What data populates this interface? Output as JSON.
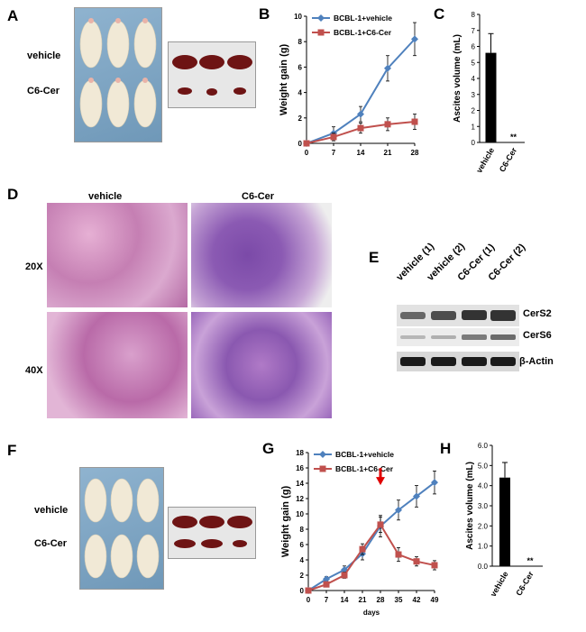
{
  "panels": {
    "A": {
      "letter": "A",
      "label_vehicle": "vehicle",
      "label_c6": "C6-Cer"
    },
    "B": {
      "letter": "B"
    },
    "C": {
      "letter": "C"
    },
    "D": {
      "letter": "D",
      "col_vehicle": "vehicle",
      "col_c6": "C6-Cer",
      "row_20x": "20X",
      "row_40x": "40X"
    },
    "E": {
      "letter": "E",
      "lanes": [
        "vehicle (1)",
        "vehicle (2)",
        "C6-Cer (1)",
        "C6-Cer (2)"
      ],
      "bands": [
        "CerS2",
        "CerS6",
        "β-Actin"
      ]
    },
    "F": {
      "letter": "F",
      "label_vehicle": "vehicle",
      "label_c6": "C6-Cer"
    },
    "G": {
      "letter": "G"
    },
    "H": {
      "letter": "H"
    }
  },
  "chart_data": [
    {
      "id": "B",
      "type": "line",
      "x": [
        0,
        7,
        14,
        21,
        28
      ],
      "series": [
        {
          "name": "BCBL-1+vehicle",
          "color": "#4f81bd",
          "marker": "diamond",
          "values": [
            0,
            0.8,
            2.3,
            5.9,
            8.2
          ],
          "errors": [
            0.1,
            0.5,
            0.6,
            1.0,
            1.3
          ]
        },
        {
          "name": "BCBL-1+C6-Cer",
          "color": "#c0504d",
          "marker": "square",
          "values": [
            0,
            0.5,
            1.2,
            1.5,
            1.7
          ],
          "errors": [
            0.1,
            0.3,
            0.4,
            0.5,
            0.6
          ]
        }
      ],
      "xticks": [
        "0",
        "7",
        "14",
        "21",
        "28"
      ],
      "yticks": [
        "0",
        "2",
        "4",
        "6",
        "8",
        "10"
      ],
      "ylabel": "Weight gain (g)",
      "xlabel": "",
      "ylim": [
        0,
        10
      ],
      "legend": "top-left"
    },
    {
      "id": "C",
      "type": "bar",
      "categories": [
        "vehicle",
        "C6-Cer"
      ],
      "values": [
        5.6,
        0.02
      ],
      "errors": [
        1.2,
        0
      ],
      "annotation": "**",
      "yticks": [
        "0",
        "1",
        "2",
        "3",
        "4",
        "5",
        "6",
        "7",
        "8"
      ],
      "ylabel": "Ascites volume (mL)",
      "ylim": [
        0,
        8
      ]
    },
    {
      "id": "G",
      "type": "line",
      "x": [
        0,
        7,
        14,
        21,
        28,
        35,
        42,
        49
      ],
      "series": [
        {
          "name": "BCBL-1+vehicle",
          "color": "#4f81bd",
          "marker": "diamond",
          "values": [
            0,
            1.5,
            2.7,
            4.8,
            8.4,
            10.5,
            12.3,
            14.1
          ],
          "errors": [
            0.2,
            0.3,
            0.5,
            0.8,
            1.4,
            1.3,
            1.4,
            1.5
          ]
        },
        {
          "name": "BCBL-1+C6-Cer",
          "color": "#c0504d",
          "marker": "square",
          "values": [
            0,
            0.8,
            2.0,
            5.4,
            8.6,
            4.7,
            3.8,
            3.3
          ],
          "errors": [
            0.1,
            0.3,
            0.4,
            0.7,
            1.0,
            0.9,
            0.6,
            0.6
          ]
        }
      ],
      "xticks": [
        "0",
        "7",
        "14",
        "21",
        "28",
        "35",
        "42",
        "49"
      ],
      "yticks": [
        "0",
        "2",
        "4",
        "6",
        "8",
        "10",
        "12",
        "14",
        "16",
        "18"
      ],
      "ylabel": "Weight gain (g)",
      "xlabel": "days",
      "ylim": [
        0,
        18
      ],
      "legend": "top-left",
      "arrow_at_x": 28
    },
    {
      "id": "H",
      "type": "bar",
      "categories": [
        "vehicle",
        "C6-Cer"
      ],
      "values": [
        4.4,
        0.02
      ],
      "errors": [
        0.75,
        0
      ],
      "annotation": "**",
      "yticks": [
        "0.0",
        "1.0",
        "2.0",
        "3.0",
        "4.0",
        "5.0",
        "6.0"
      ],
      "ylabel": "Ascites volume (mL)",
      "ylim": [
        0,
        6
      ]
    }
  ]
}
